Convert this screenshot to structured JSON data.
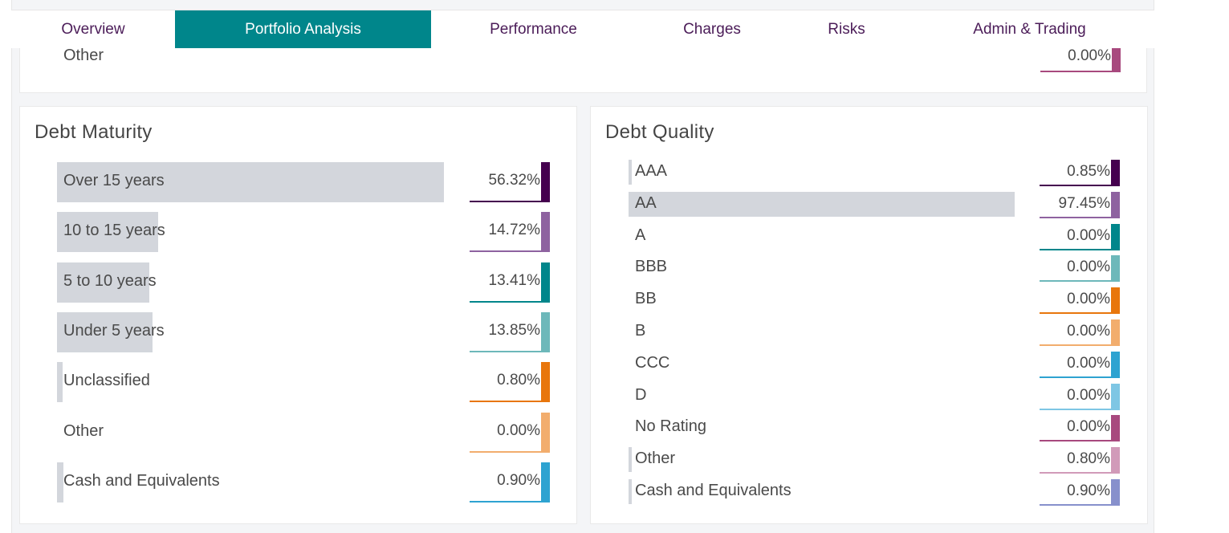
{
  "tabs": [
    {
      "label": "Overview",
      "active": false
    },
    {
      "label": "Portfolio Analysis",
      "active": true
    },
    {
      "label": "Performance",
      "active": false
    },
    {
      "label": "Charges",
      "active": false
    },
    {
      "label": "Risks",
      "active": false
    },
    {
      "label": "Admin & Trading",
      "active": false
    }
  ],
  "top_card": {
    "label": "Other",
    "value": "0.00%",
    "color": "#a8497e"
  },
  "debt_maturity": {
    "title": "Debt Maturity",
    "items": [
      {
        "label": "Over 15 years",
        "value": "56.32%",
        "pct": 56.32,
        "color": "#45004f"
      },
      {
        "label": "10 to 15 years",
        "value": "14.72%",
        "pct": 14.72,
        "color": "#8e62a0"
      },
      {
        "label": "5 to 10 years",
        "value": "13.41%",
        "pct": 13.41,
        "color": "#00868b"
      },
      {
        "label": "Under 5 years",
        "value": "13.85%",
        "pct": 13.85,
        "color": "#6db8ba"
      },
      {
        "label": "Unclassified",
        "value": "0.80%",
        "pct": 0.8,
        "color": "#e8760c"
      },
      {
        "label": "Other",
        "value": "0.00%",
        "pct": 0.0,
        "color": "#f2ad6d"
      },
      {
        "label": "Cash and Equivalents",
        "value": "0.90%",
        "pct": 0.9,
        "color": "#2ea3d1"
      }
    ]
  },
  "debt_quality": {
    "title": "Debt Quality",
    "items": [
      {
        "label": "AAA",
        "value": "0.85%",
        "pct": 0.85,
        "color": "#45004f"
      },
      {
        "label": "AA",
        "value": "97.45%",
        "pct": 97.45,
        "color": "#8e62a0"
      },
      {
        "label": "A",
        "value": "0.00%",
        "pct": 0.0,
        "color": "#00868b"
      },
      {
        "label": "BBB",
        "value": "0.00%",
        "pct": 0.0,
        "color": "#6db8ba"
      },
      {
        "label": "BB",
        "value": "0.00%",
        "pct": 0.0,
        "color": "#e8760c"
      },
      {
        "label": "B",
        "value": "0.00%",
        "pct": 0.0,
        "color": "#f2ad6d"
      },
      {
        "label": "CCC",
        "value": "0.00%",
        "pct": 0.0,
        "color": "#2ea3d1"
      },
      {
        "label": "D",
        "value": "0.00%",
        "pct": 0.0,
        "color": "#7ec6e4"
      },
      {
        "label": "No Rating",
        "value": "0.00%",
        "pct": 0.0,
        "color": "#a8497e"
      },
      {
        "label": "Other",
        "value": "0.80%",
        "pct": 0.8,
        "color": "#d19ab9"
      },
      {
        "label": "Cash and Equivalents",
        "value": "0.90%",
        "pct": 0.9,
        "color": "#8790cc"
      }
    ]
  }
}
